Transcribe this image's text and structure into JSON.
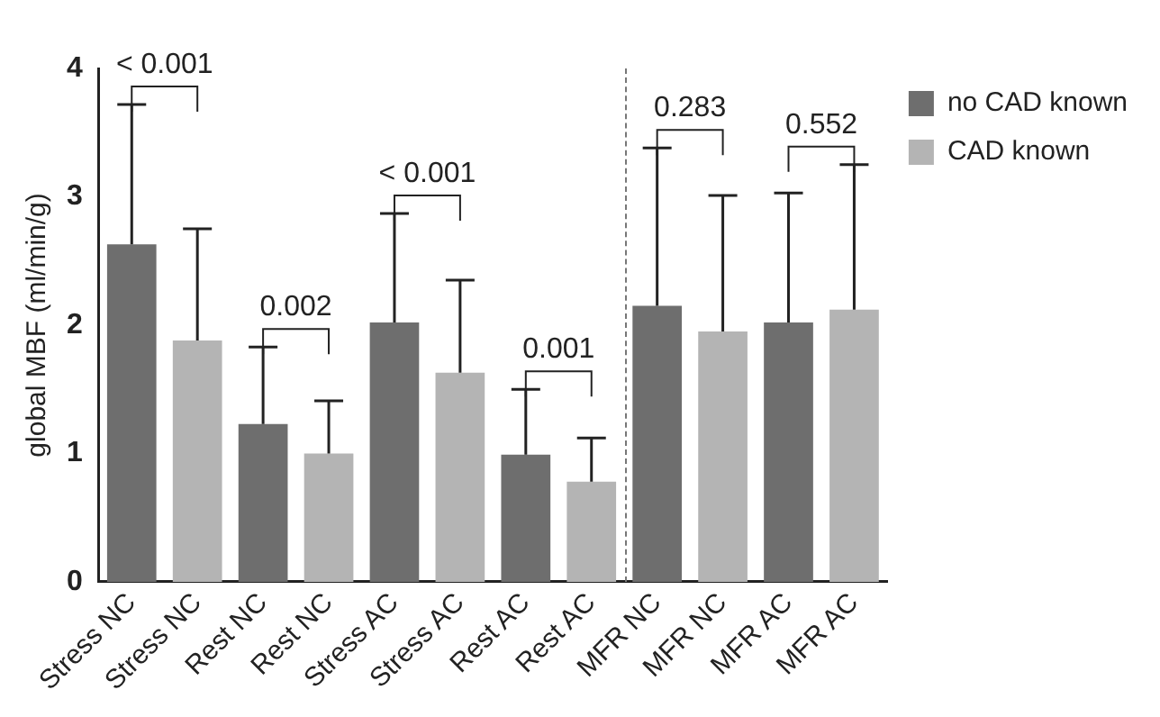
{
  "chart_data": {
    "type": "bar",
    "ylabel": "global MBF (ml/min/g)",
    "categories": [
      "Stress NC",
      "Stress NC",
      "Rest NC",
      "Rest NC",
      "Stress AC",
      "Stress AC",
      "Rest AC",
      "Rest AC",
      "MFR NC",
      "MFR NC",
      "MFR AC",
      "MFR AC"
    ],
    "series": [
      {
        "name": "no CAD known",
        "color": "#6e6e6e",
        "values": [
          2.63,
          null,
          1.23,
          null,
          2.02,
          null,
          0.99,
          null,
          2.15,
          null,
          2.02,
          null
        ],
        "errors": [
          [
            2.63,
            3.72
          ],
          null,
          [
            1.23,
            1.83
          ],
          null,
          [
            2.02,
            2.87
          ],
          null,
          [
            0.99,
            1.5
          ],
          null,
          [
            2.15,
            3.38
          ],
          null,
          [
            2.02,
            3.03
          ],
          null
        ]
      },
      {
        "name": "CAD known",
        "color": "#b4b4b4",
        "values": [
          null,
          1.88,
          null,
          1.0,
          null,
          1.63,
          null,
          0.78,
          null,
          1.95,
          null,
          2.12
        ],
        "errors": [
          null,
          [
            1.88,
            2.75
          ],
          null,
          [
            1.0,
            1.41
          ],
          null,
          [
            1.63,
            2.35
          ],
          null,
          [
            0.78,
            1.12
          ],
          null,
          [
            1.95,
            3.01
          ],
          null,
          [
            2.12,
            3.25
          ]
        ]
      }
    ],
    "ylim": [
      0,
      4
    ],
    "yticks": [
      0,
      1,
      2,
      3,
      4
    ],
    "grid": false,
    "legend": "top right",
    "annotations": [
      "< 0.001",
      "0.002",
      "< 0.001",
      "0.001",
      "0.283",
      "0.552"
    ]
  }
}
